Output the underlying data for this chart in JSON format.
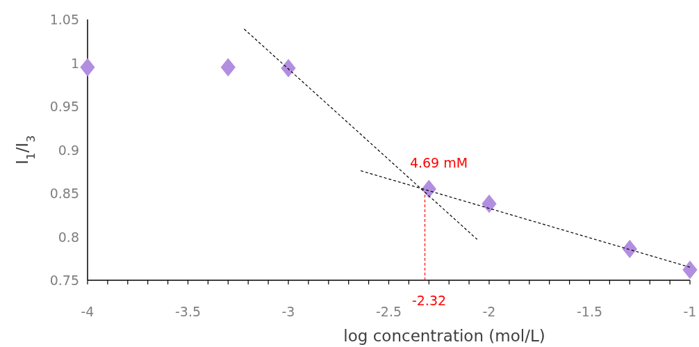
{
  "chart_data": {
    "type": "scatter",
    "xlabel": "log concentration (mol/L)",
    "ylabel": "I$_{1}$/I$_{3}$",
    "xlim": [
      -4,
      -1
    ],
    "xticks": [
      -4,
      {
        "value": -3.9,
        "label": null
      },
      {
        "value": -3.8,
        "label": null
      },
      {
        "value": -3.7,
        "label": null
      },
      {
        "value": -3.6,
        "label": null
      },
      -3.5,
      {
        "value": -3.4,
        "label": null
      },
      {
        "value": -3.3,
        "label": null
      },
      {
        "value": -3.2,
        "label": null
      },
      {
        "value": -3.1,
        "label": null
      },
      -3,
      {
        "value": -2.9,
        "label": null
      },
      {
        "value": -2.8,
        "label": null
      },
      {
        "value": -2.7,
        "label": null
      },
      {
        "value": -2.6,
        "label": null
      },
      -2.5,
      {
        "value": -2.4,
        "label": null
      },
      {
        "value": -2.3,
        "label": null
      },
      {
        "value": -2.2,
        "label": null
      },
      {
        "value": -2.1,
        "label": null
      },
      -2,
      {
        "value": -1.9,
        "label": null
      },
      {
        "value": -1.8,
        "label": null
      },
      {
        "value": -1.7,
        "label": null
      },
      {
        "value": -1.6,
        "label": null
      },
      -1.5,
      {
        "value": -1.4,
        "label": null
      },
      {
        "value": -1.3,
        "label": null
      },
      {
        "value": -1.2,
        "label": null
      },
      {
        "value": -1.1,
        "label": null
      },
      -1
    ],
    "ylim": [
      0.75,
      1.05
    ],
    "yticks": [
      0.75,
      0.8,
      0.85,
      0.9,
      0.95,
      1,
      1.05
    ],
    "grid": false,
    "series": [
      {
        "marker": "diamond",
        "color": "#b28ee0",
        "x": [
          -4,
          -3.3,
          -3,
          -2.3,
          -2,
          -1.3,
          -1
        ],
        "values": [
          0.995,
          0.995,
          0.994,
          0.855,
          0.838,
          0.786,
          0.762
        ]
      },
      {
        "type": "line",
        "line_style": "dashed",
        "marker": "none",
        "color": "#000000",
        "x": [
          -3.22,
          -2.06
        ],
        "values": [
          1.039,
          0.797
        ]
      },
      {
        "type": "line",
        "line_style": "dashed",
        "marker": "none",
        "color": "#000000",
        "x": [
          -2.64,
          -1
        ],
        "values": [
          0.876,
          0.765
        ]
      }
    ],
    "ref_lines": [
      {
        "axis": "x",
        "value": -2.32,
        "label": "-2.32",
        "color": "#ff0000",
        "line_style": "dashed"
      }
    ],
    "annotations": [
      {
        "text": "4.69 mM",
        "x": -2.32,
        "y": 0.857
      }
    ]
  }
}
